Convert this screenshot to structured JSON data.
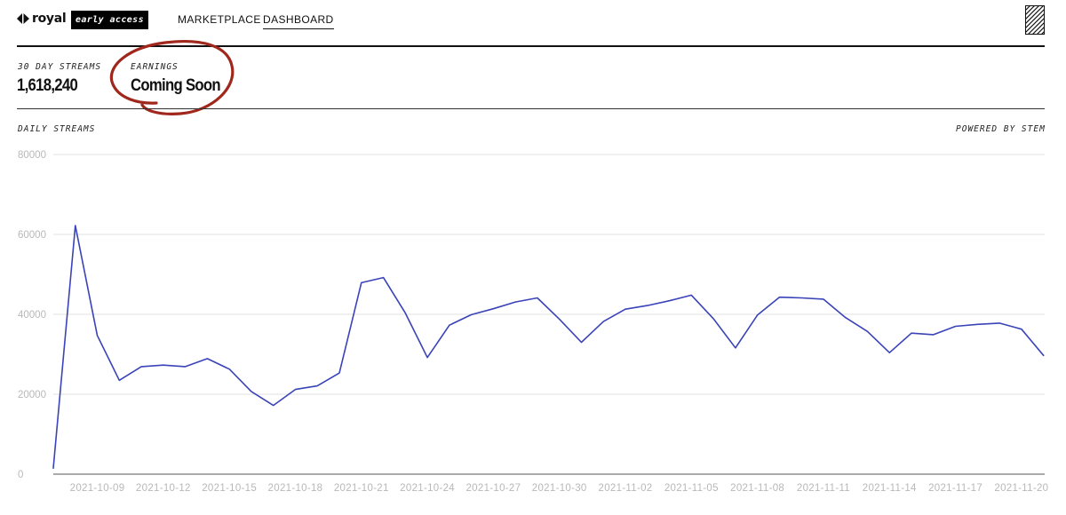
{
  "header": {
    "logo_text": "royal",
    "badge": "early access",
    "nav": [
      {
        "label": "MARKETPLACE",
        "active": false
      },
      {
        "label": "DASHBOARD",
        "active": true
      }
    ]
  },
  "stats": {
    "streams_label": "30 DAY STREAMS",
    "streams_value": "1,618,240",
    "earnings_label": "EARNINGS",
    "earnings_value": "Coming Soon"
  },
  "chart_section": {
    "title": "DAILY STREAMS",
    "powered_by": "POWERED BY STEM"
  },
  "colors": {
    "line": "#3a43b8",
    "grid": "#e2e2e2",
    "annotation": "#a0271c",
    "rule": "#111111"
  },
  "chart_data": {
    "type": "line",
    "ylim": [
      0,
      80000
    ],
    "yticks": [
      0,
      20000,
      40000,
      60000,
      80000
    ],
    "xtick_labels": [
      "2021-10-09",
      "2021-10-12",
      "2021-10-15",
      "2021-10-18",
      "2021-10-21",
      "2021-10-24",
      "2021-10-27",
      "2021-10-30",
      "2021-11-02",
      "2021-11-05",
      "2021-11-08",
      "2021-11-11",
      "2021-11-14",
      "2021-11-17",
      "2021-11-20"
    ],
    "x": [
      "2021-10-07",
      "2021-10-08",
      "2021-10-09",
      "2021-10-10",
      "2021-10-11",
      "2021-10-12",
      "2021-10-13",
      "2021-10-14",
      "2021-10-15",
      "2021-10-16",
      "2021-10-17",
      "2021-10-18",
      "2021-10-19",
      "2021-10-20",
      "2021-10-21",
      "2021-10-22",
      "2021-10-23",
      "2021-10-24",
      "2021-10-25",
      "2021-10-26",
      "2021-10-27",
      "2021-10-28",
      "2021-10-29",
      "2021-10-30",
      "2021-10-31",
      "2021-11-01",
      "2021-11-02",
      "2021-11-03",
      "2021-11-04",
      "2021-11-05",
      "2021-11-06",
      "2021-11-07",
      "2021-11-08",
      "2021-11-09",
      "2021-11-10",
      "2021-11-11",
      "2021-11-12",
      "2021-11-13",
      "2021-11-14",
      "2021-11-15",
      "2021-11-16",
      "2021-11-17",
      "2021-11-18",
      "2021-11-19",
      "2021-11-20",
      "2021-11-21"
    ],
    "values": [
      1500,
      62200,
      34700,
      23500,
      26900,
      27300,
      26900,
      28900,
      26300,
      20700,
      17200,
      21200,
      22100,
      25300,
      47900,
      49200,
      40300,
      29200,
      37300,
      39900,
      41400,
      43100,
      44100,
      38800,
      33000,
      38200,
      41300,
      42200,
      43400,
      44800,
      38900,
      31600,
      39800,
      44300,
      44100,
      43800,
      39200,
      35700,
      30400,
      35300,
      34900,
      37000,
      37500,
      37800,
      36300,
      29700
    ]
  }
}
